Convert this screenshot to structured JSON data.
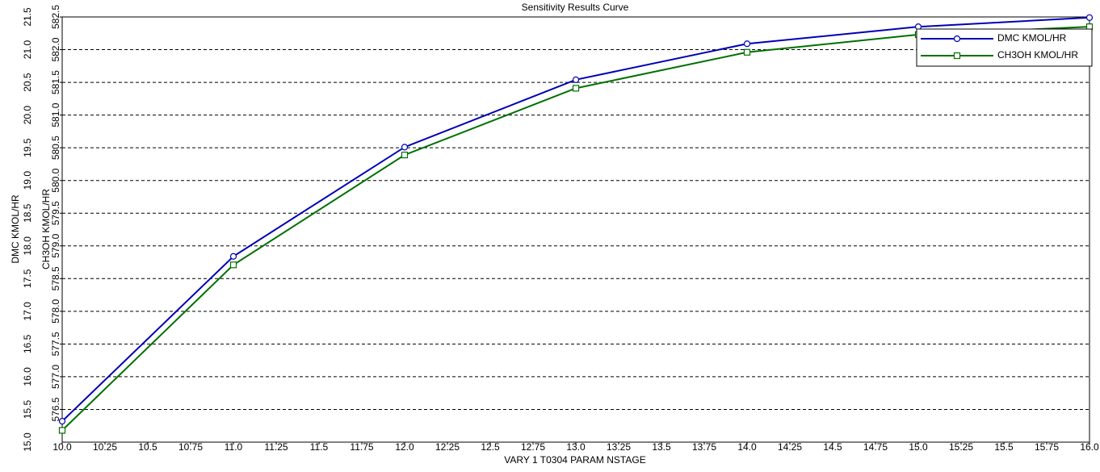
{
  "chart_data": {
    "type": "line",
    "title": "Sensitivity Results Curve",
    "x_label": "VARY   1 T0304 PARAM NSTAGE",
    "y_label": "DMC KMOL/HR",
    "y2_label": "CH3OH KMOL/HR",
    "x": [
      10,
      11,
      12,
      13,
      14,
      15,
      16
    ],
    "series": [
      {
        "name": "DMC KMOL/HR",
        "color": "#0000b4",
        "marker": "circle",
        "values": [
          15.32,
          17.84,
          19.51,
          20.54,
          21.09,
          21.35,
          21.49
        ]
      },
      {
        "name": "CH3OH KMOL/HR",
        "color": "#007000",
        "marker": "square",
        "axis": "y2",
        "values": [
          576.18,
          578.71,
          580.39,
          581.41,
          581.96,
          582.23,
          582.35
        ]
      }
    ],
    "xlim": [
      10,
      16
    ],
    "xticks": [
      {
        "value": 10,
        "label": "10.0"
      },
      10.25,
      10.5,
      10.75,
      {
        "value": 11,
        "label": "11.0"
      },
      11.25,
      11.5,
      11.75,
      {
        "value": 12,
        "label": "12.0"
      },
      12.25,
      12.5,
      12.75,
      {
        "value": 13,
        "label": "13.0"
      },
      13.25,
      13.5,
      13.75,
      {
        "value": 14,
        "label": "14.0"
      },
      14.25,
      14.5,
      14.75,
      {
        "value": 15,
        "label": "15.0"
      },
      15.25,
      15.5,
      15.75,
      {
        "value": 16,
        "label": "16.0"
      }
    ],
    "ylim": [
      15,
      21.5
    ],
    "yticks": [
      {
        "value": 15,
        "label": "15.0"
      },
      15.5,
      {
        "value": 16,
        "label": "16.0"
      },
      16.5,
      {
        "value": 17,
        "label": "17.0"
      },
      17.5,
      {
        "value": 18,
        "label": "18.0"
      },
      18.5,
      {
        "value": 19,
        "label": "19.0"
      },
      19.5,
      {
        "value": 20,
        "label": "20.0"
      },
      20.5,
      {
        "value": 21,
        "label": "21.0"
      },
      21.5
    ],
    "y2lim": [
      576,
      582.5
    ],
    "y2ticks": [
      576.5,
      {
        "value": 577,
        "label": "577.0"
      },
      577.5,
      {
        "value": 578,
        "label": "578.0"
      },
      578.5,
      {
        "value": 579,
        "label": "579.0"
      },
      579.5,
      {
        "value": 580,
        "label": "580.0"
      },
      580.5,
      {
        "value": 581,
        "label": "581.0"
      },
      581.5,
      {
        "value": 582,
        "label": "582.0"
      },
      582.5
    ],
    "grid": true,
    "legend": "top-right"
  }
}
